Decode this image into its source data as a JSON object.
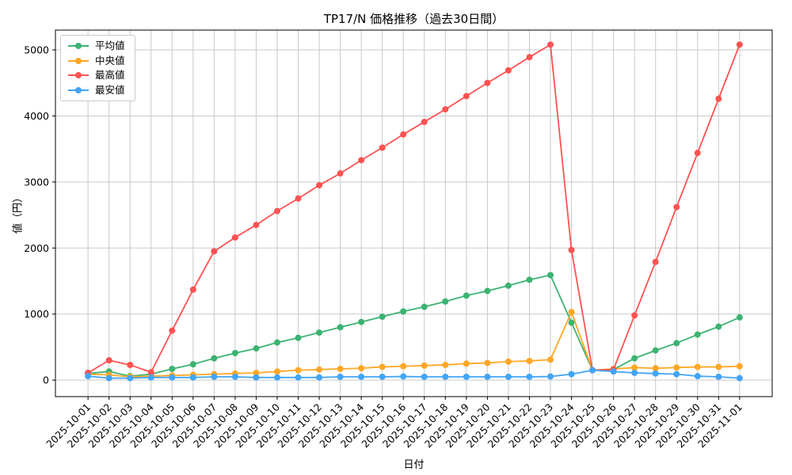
{
  "chart_data": {
    "type": "line",
    "title": "TP17/N 価格推移（過去30日間）",
    "xlabel": "日付",
    "ylabel": "値（円）",
    "grid": true,
    "legend_position": "upper left",
    "ylim": [
      -250,
      5300
    ],
    "yticks": [
      0,
      1000,
      2000,
      3000,
      4000,
      5000
    ],
    "x": [
      "2025-10-01",
      "2025-10-02",
      "2025-10-03",
      "2025-10-04",
      "2025-10-05",
      "2025-10-06",
      "2025-10-07",
      "2025-10-08",
      "2025-10-09",
      "2025-10-10",
      "2025-10-11",
      "2025-10-12",
      "2025-10-13",
      "2025-10-14",
      "2025-10-15",
      "2025-10-16",
      "2025-10-17",
      "2025-10-18",
      "2025-10-19",
      "2025-10-20",
      "2025-10-21",
      "2025-10-22",
      "2025-10-23",
      "2025-10-24",
      "2025-10-25",
      "2025-10-26",
      "2025-10-27",
      "2025-10-28",
      "2025-10-29",
      "2025-10-30",
      "2025-10-31",
      "2025-11-01"
    ],
    "series": [
      {
        "id": "average",
        "name": "平均値",
        "color": "#3cb371",
        "values": [
          100,
          130,
          60,
          90,
          170,
          240,
          330,
          410,
          480,
          570,
          640,
          720,
          800,
          880,
          960,
          1040,
          1110,
          1190,
          1280,
          1350,
          1430,
          1520,
          1590,
          870,
          150,
          160,
          330,
          450,
          560,
          690,
          810,
          950
        ]
      },
      {
        "id": "median",
        "name": "中央値",
        "color": "#ffa726",
        "values": [
          90,
          80,
          50,
          60,
          70,
          80,
          90,
          100,
          110,
          130,
          150,
          160,
          170,
          180,
          200,
          210,
          220,
          230,
          250,
          260,
          280,
          290,
          310,
          1030,
          150,
          170,
          190,
          180,
          190,
          200,
          200,
          210
        ]
      },
      {
        "id": "max",
        "name": "最高値",
        "color": "#ff5252",
        "values": [
          110,
          300,
          230,
          120,
          750,
          1370,
          1950,
          2160,
          2350,
          2560,
          2750,
          2950,
          3130,
          3330,
          3520,
          3720,
          3910,
          4100,
          4300,
          4500,
          4690,
          4890,
          5080,
          1970,
          150,
          160,
          980,
          1790,
          2620,
          3440,
          4260,
          5080
        ]
      },
      {
        "id": "min",
        "name": "最安値",
        "color": "#42a5f5",
        "values": [
          60,
          30,
          30,
          40,
          40,
          40,
          50,
          50,
          40,
          40,
          40,
          40,
          50,
          50,
          50,
          55,
          50,
          50,
          50,
          50,
          50,
          50,
          55,
          90,
          150,
          130,
          110,
          100,
          90,
          60,
          50,
          30
        ]
      }
    ]
  }
}
